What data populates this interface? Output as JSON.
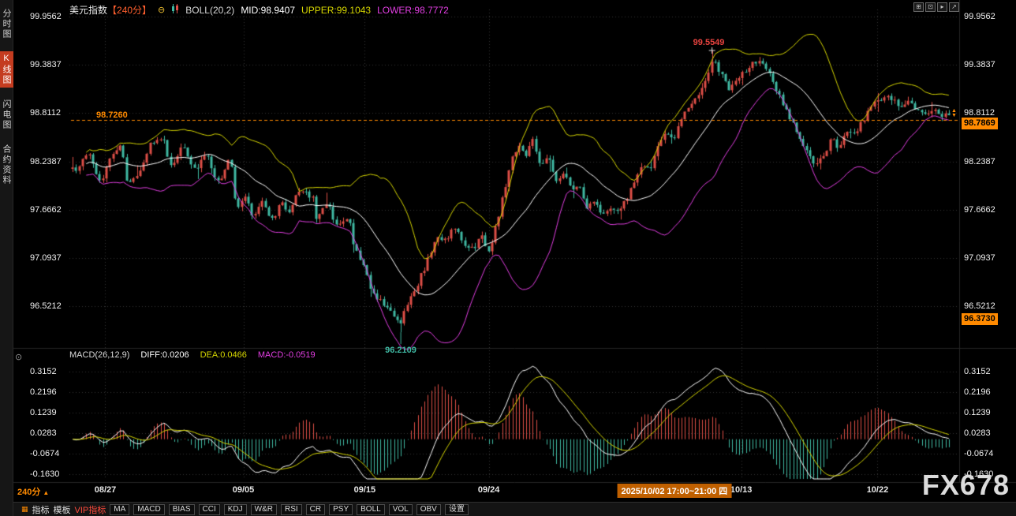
{
  "header": {
    "symbol": "美元指数",
    "period": "【240分】",
    "boll_label": "BOLL(20,2)",
    "boll_mid": "MID:98.9407",
    "boll_upper": "UPPER:99.1043",
    "boll_lower": "LOWER:98.7772"
  },
  "icons": {
    "collapse": "⊖",
    "macd_toggle": "⊙",
    "indicator_menu": "▦",
    "spinner_up": "▲",
    "spinner_down": "▼"
  },
  "window_controls": [
    {
      "name": "grid-icon",
      "glyph": "⊞"
    },
    {
      "name": "pane-icon",
      "glyph": "⊡"
    },
    {
      "name": "play-icon",
      "glyph": "▸"
    },
    {
      "name": "expand-icon",
      "glyph": "↗"
    }
  ],
  "sidebar": {
    "items": [
      {
        "label": "分时图",
        "active": false
      },
      {
        "label": "K线图",
        "active": true
      },
      {
        "label": "闪电图",
        "active": false
      },
      {
        "label": "合约资料",
        "active": false
      }
    ]
  },
  "main_axis": {
    "labels": [
      "99.9562",
      "99.3837",
      "98.8112",
      "98.2387",
      "97.6662",
      "97.0937",
      "96.5212"
    ]
  },
  "macd_axis": {
    "labels": [
      "0.3152",
      "0.2196",
      "0.1239",
      "0.0283",
      "-0.0674",
      "-0.1630"
    ]
  },
  "annotations": {
    "ref_price": "98.7260",
    "high_label": "99.5549",
    "low_label": "96.2109",
    "last_price": "98.7869",
    "low_box": "96.3730"
  },
  "macd_header": {
    "label": "MACD(26,12,9)",
    "diff": "DIFF:0.0206",
    "dea": "DEA:0.0466",
    "macd": "MACD:-0.0519"
  },
  "x_axis": {
    "dates": [
      {
        "label": "08/27",
        "f": 0.039
      },
      {
        "label": "09/05",
        "f": 0.196
      },
      {
        "label": "09/15",
        "f": 0.334
      },
      {
        "label": "09/24",
        "f": 0.475
      },
      {
        "label": "10/13",
        "f": 0.762
      },
      {
        "label": "10/22",
        "f": 0.917
      }
    ],
    "highlight": "2025/10/02 17:00~21:00 四",
    "highlight_f": 0.686
  },
  "footer": {
    "period_label": "240分",
    "period_arrow": "▲",
    "indicator_menu": "指标",
    "template_menu": "模板",
    "vip_menu": "VIP指标",
    "indicators": [
      "MA",
      "MACD",
      "BIAS",
      "CCI",
      "KDJ",
      "W&R",
      "RSI",
      "CR",
      "PSY",
      "BOLL",
      "VOL",
      "OBV"
    ],
    "settings": "设置"
  },
  "watermark": "FX678",
  "colors": {
    "up": "#dd4e46",
    "down": "#3fb8a2",
    "boll_upper": "#d6d600",
    "boll_mid": "#ffffff",
    "boll_lower": "#e23ee2",
    "accent": "#ff8a00",
    "hist_pos": "#dd4e46",
    "hist_neg": "#3fb8a2",
    "diff_line": "#ffffff",
    "dea_line": "#d6d600",
    "grid": "#343434"
  },
  "chart_data": {
    "type": "candlestick",
    "symbol": "美元指数",
    "interval_minutes": 240,
    "price_axis": {
      "labels": [
        99.9562,
        99.3837,
        98.8112,
        98.2387,
        97.6662,
        97.0937,
        96.5212
      ],
      "step": 0.5725
    },
    "macd_axis_values": [
      0.3152,
      0.2196,
      0.1239,
      0.0283,
      -0.0674,
      -0.163
    ],
    "boll": {
      "period": 20,
      "width": 2,
      "mid": 98.9407,
      "upper": 99.1043,
      "lower": 98.7772
    },
    "macd": {
      "fast": 12,
      "slow": 26,
      "signal": 9,
      "diff": 0.0206,
      "dea": 0.0466,
      "hist": -0.0519
    },
    "key_points": {
      "high": 99.5549,
      "low": 96.2109,
      "last": 98.7869,
      "ref_line": 98.726,
      "right_low_box": 96.373,
      "low_f": 0.374,
      "high_f": 0.731
    },
    "price_path_anchors": [
      [
        0.004,
        98.15
      ],
      [
        0.018,
        98.35
      ],
      [
        0.031,
        98.0
      ],
      [
        0.045,
        98.3
      ],
      [
        0.054,
        98.45
      ],
      [
        0.063,
        98.0
      ],
      [
        0.076,
        98.1
      ],
      [
        0.09,
        98.45
      ],
      [
        0.103,
        98.5
      ],
      [
        0.112,
        98.2
      ],
      [
        0.126,
        98.4
      ],
      [
        0.139,
        98.15
      ],
      [
        0.152,
        98.3
      ],
      [
        0.166,
        98.0
      ],
      [
        0.179,
        98.25
      ],
      [
        0.188,
        97.7
      ],
      [
        0.197,
        97.8
      ],
      [
        0.206,
        97.6
      ],
      [
        0.215,
        97.75
      ],
      [
        0.229,
        97.55
      ],
      [
        0.238,
        97.75
      ],
      [
        0.247,
        97.65
      ],
      [
        0.26,
        97.9
      ],
      [
        0.274,
        97.8
      ],
      [
        0.278,
        97.55
      ],
      [
        0.291,
        97.75
      ],
      [
        0.3,
        97.5
      ],
      [
        0.314,
        97.55
      ],
      [
        0.323,
        97.2
      ],
      [
        0.332,
        97.0
      ],
      [
        0.341,
        96.7
      ],
      [
        0.35,
        96.6
      ],
      [
        0.359,
        96.5
      ],
      [
        0.368,
        96.4
      ],
      [
        0.374,
        96.3
      ],
      [
        0.381,
        96.55
      ],
      [
        0.39,
        96.7
      ],
      [
        0.399,
        96.9
      ],
      [
        0.408,
        97.15
      ],
      [
        0.417,
        97.35
      ],
      [
        0.426,
        97.3
      ],
      [
        0.435,
        97.45
      ],
      [
        0.448,
        97.25
      ],
      [
        0.457,
        97.2
      ],
      [
        0.466,
        97.35
      ],
      [
        0.475,
        97.15
      ],
      [
        0.484,
        97.5
      ],
      [
        0.493,
        97.9
      ],
      [
        0.502,
        98.3
      ],
      [
        0.511,
        98.45
      ],
      [
        0.516,
        98.3
      ],
      [
        0.525,
        98.5
      ],
      [
        0.534,
        98.2
      ],
      [
        0.543,
        98.3
      ],
      [
        0.552,
        98.0
      ],
      [
        0.561,
        98.1
      ],
      [
        0.57,
        97.9
      ],
      [
        0.578,
        97.95
      ],
      [
        0.587,
        97.7
      ],
      [
        0.596,
        97.75
      ],
      [
        0.605,
        97.6
      ],
      [
        0.614,
        97.7
      ],
      [
        0.623,
        97.65
      ],
      [
        0.632,
        97.8
      ],
      [
        0.641,
        98.0
      ],
      [
        0.65,
        98.2
      ],
      [
        0.659,
        98.15
      ],
      [
        0.668,
        98.4
      ],
      [
        0.677,
        98.6
      ],
      [
        0.686,
        98.5
      ],
      [
        0.695,
        98.75
      ],
      [
        0.704,
        98.9
      ],
      [
        0.713,
        99.0
      ],
      [
        0.722,
        99.2
      ],
      [
        0.731,
        99.42
      ],
      [
        0.74,
        99.3
      ],
      [
        0.749,
        99.1
      ],
      [
        0.758,
        99.2
      ],
      [
        0.767,
        99.3
      ],
      [
        0.776,
        99.4
      ],
      [
        0.785,
        99.42
      ],
      [
        0.794,
        99.3
      ],
      [
        0.803,
        99.1
      ],
      [
        0.812,
        98.9
      ],
      [
        0.821,
        98.7
      ],
      [
        0.83,
        98.5
      ],
      [
        0.839,
        98.35
      ],
      [
        0.848,
        98.2
      ],
      [
        0.857,
        98.3
      ],
      [
        0.866,
        98.5
      ],
      [
        0.875,
        98.4
      ],
      [
        0.884,
        98.6
      ],
      [
        0.893,
        98.55
      ],
      [
        0.901,
        98.7
      ],
      [
        0.91,
        98.9
      ],
      [
        0.919,
        98.95
      ],
      [
        0.928,
        99.0
      ],
      [
        0.937,
        98.95
      ],
      [
        0.946,
        98.9
      ],
      [
        0.955,
        98.95
      ],
      [
        0.964,
        98.85
      ],
      [
        0.973,
        98.8
      ],
      [
        0.982,
        98.85
      ],
      [
        0.991,
        98.79
      ],
      [
        1.0,
        98.79
      ]
    ]
  }
}
